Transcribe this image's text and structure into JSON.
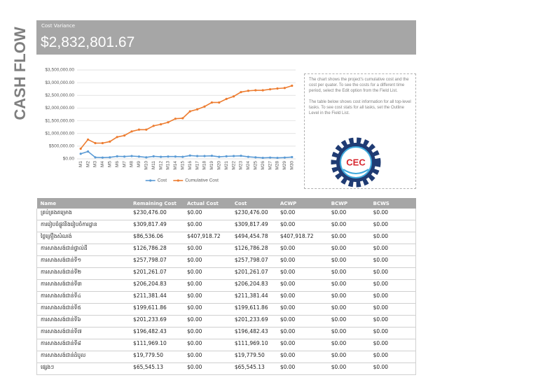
{
  "page": {
    "side_title": "CASH FLOW"
  },
  "banner": {
    "label": "Cost Variance",
    "value": "$2,832,801.67"
  },
  "chart_data": {
    "type": "line",
    "categories": [
      "M1",
      "M2",
      "M3",
      "M4",
      "M5",
      "M6",
      "M7",
      "M8",
      "M9",
      "M10",
      "M11",
      "M12",
      "M13",
      "M14",
      "M15",
      "M16",
      "M17",
      "M18",
      "M19",
      "M20",
      "M21",
      "M22",
      "M23",
      "M24",
      "M25",
      "M26",
      "M27",
      "M28",
      "M29",
      "M30"
    ],
    "series": [
      {
        "name": "Cost",
        "color": "#5b9bd5",
        "values": [
          200000,
          290000,
          60000,
          50000,
          60000,
          100000,
          90000,
          110000,
          90000,
          60000,
          100000,
          80000,
          90000,
          90000,
          80000,
          130000,
          110000,
          110000,
          120000,
          80000,
          100000,
          110000,
          120000,
          80000,
          60000,
          40000,
          50000,
          40000,
          50000,
          70000
        ]
      },
      {
        "name": "Cumulative Cost",
        "color": "#ed7d31",
        "values": [
          400000,
          760000,
          620000,
          620000,
          680000,
          860000,
          920000,
          1080000,
          1150000,
          1150000,
          1300000,
          1360000,
          1440000,
          1580000,
          1600000,
          1870000,
          1950000,
          2060000,
          2220000,
          2220000,
          2360000,
          2460000,
          2630000,
          2680000,
          2700000,
          2700000,
          2740000,
          2770000,
          2790000,
          2880000
        ]
      }
    ],
    "ylim": [
      0,
      3500000
    ],
    "yticks": [
      {
        "value": 0,
        "label": "$0.00"
      },
      {
        "value": 500000,
        "label": "$500,000.00"
      },
      {
        "value": 1000000,
        "label": "$1,000,000.00"
      },
      {
        "value": 1500000,
        "label": "$1,500,000.00"
      },
      {
        "value": 2000000,
        "label": "$2,000,000.00"
      },
      {
        "value": 2500000,
        "label": "$2,500,000.00"
      },
      {
        "value": 3000000,
        "label": "$3,000,000.00"
      },
      {
        "value": 3500000,
        "label": "$3,500,000.00"
      }
    ],
    "grid": true,
    "legend": "bottom"
  },
  "note": {
    "paragraphs": [
      "The chart shows the project's cumulative cost and the cost per quater. To see the costs for a different time period, select the Edit option from the Field List.",
      "The table below shows cost information for all top-level tasks. To see cost stats for all tasks, set the Outline Level in the Field List."
    ]
  },
  "logo": {
    "text": "CEC"
  },
  "table": {
    "columns": [
      "Name",
      "Remaining Cost",
      "Actual Cost",
      "Cost",
      "ACWP",
      "BCWP",
      "BCWS"
    ],
    "rows": [
      [
        "គ្រប់គ្រងគម្រោង",
        "$230,476.00",
        "$0.00",
        "$230,476.00",
        "$0.00",
        "$0.00",
        "$0.00"
      ],
      [
        "ការរៀបចំផ្លូវនិងរៀបចំការដ្ឋាន",
        "$309,817.49",
        "$0.00",
        "$309,817.49",
        "$0.00",
        "$0.00",
        "$0.00"
      ],
      [
        "ថ្លៃគ្រឿងសំណង់",
        "$86,536.06",
        "$407,918.72",
        "$494,454.78",
        "$407,918.72",
        "$0.00",
        "$0.00"
      ],
      [
        "ការសាងសង់ជាន់ផ្ទាល់ដី",
        "$126,786.28",
        "$0.00",
        "$126,786.28",
        "$0.00",
        "$0.00",
        "$0.00"
      ],
      [
        "ការសាងសង់ជាន់ទី១",
        "$257,798.07",
        "$0.00",
        "$257,798.07",
        "$0.00",
        "$0.00",
        "$0.00"
      ],
      [
        "ការសាងសង់ជាន់ទី២",
        "$201,261.07",
        "$0.00",
        "$201,261.07",
        "$0.00",
        "$0.00",
        "$0.00"
      ],
      [
        "ការសាងសង់ជាន់ទី៣",
        "$206,204.83",
        "$0.00",
        "$206,204.83",
        "$0.00",
        "$0.00",
        "$0.00"
      ],
      [
        "ការសាងសង់ជាន់ទី៤",
        "$211,381.44",
        "$0.00",
        "$211,381.44",
        "$0.00",
        "$0.00",
        "$0.00"
      ],
      [
        "ការសាងសង់ជាន់ទី៥",
        "$199,611.86",
        "$0.00",
        "$199,611.86",
        "$0.00",
        "$0.00",
        "$0.00"
      ],
      [
        "ការសាងសង់ជាន់ទី៦",
        "$201,233.69",
        "$0.00",
        "$201,233.69",
        "$0.00",
        "$0.00",
        "$0.00"
      ],
      [
        "ការសាងសង់ជាន់ទី៧",
        "$196,482.43",
        "$0.00",
        "$196,482.43",
        "$0.00",
        "$0.00",
        "$0.00"
      ],
      [
        "ការសាងសង់ជាន់ទី៨",
        "$111,969.10",
        "$0.00",
        "$111,969.10",
        "$0.00",
        "$0.00",
        "$0.00"
      ],
      [
        "ការសាងសង់ជាន់ដំបូល",
        "$19,779.50",
        "$0.00",
        "$19,779.50",
        "$0.00",
        "$0.00",
        "$0.00"
      ],
      [
        "ផ្សេងៗ",
        "$65,545.13",
        "$0.00",
        "$65,545.13",
        "$0.00",
        "$0.00",
        "$0.00"
      ]
    ]
  }
}
